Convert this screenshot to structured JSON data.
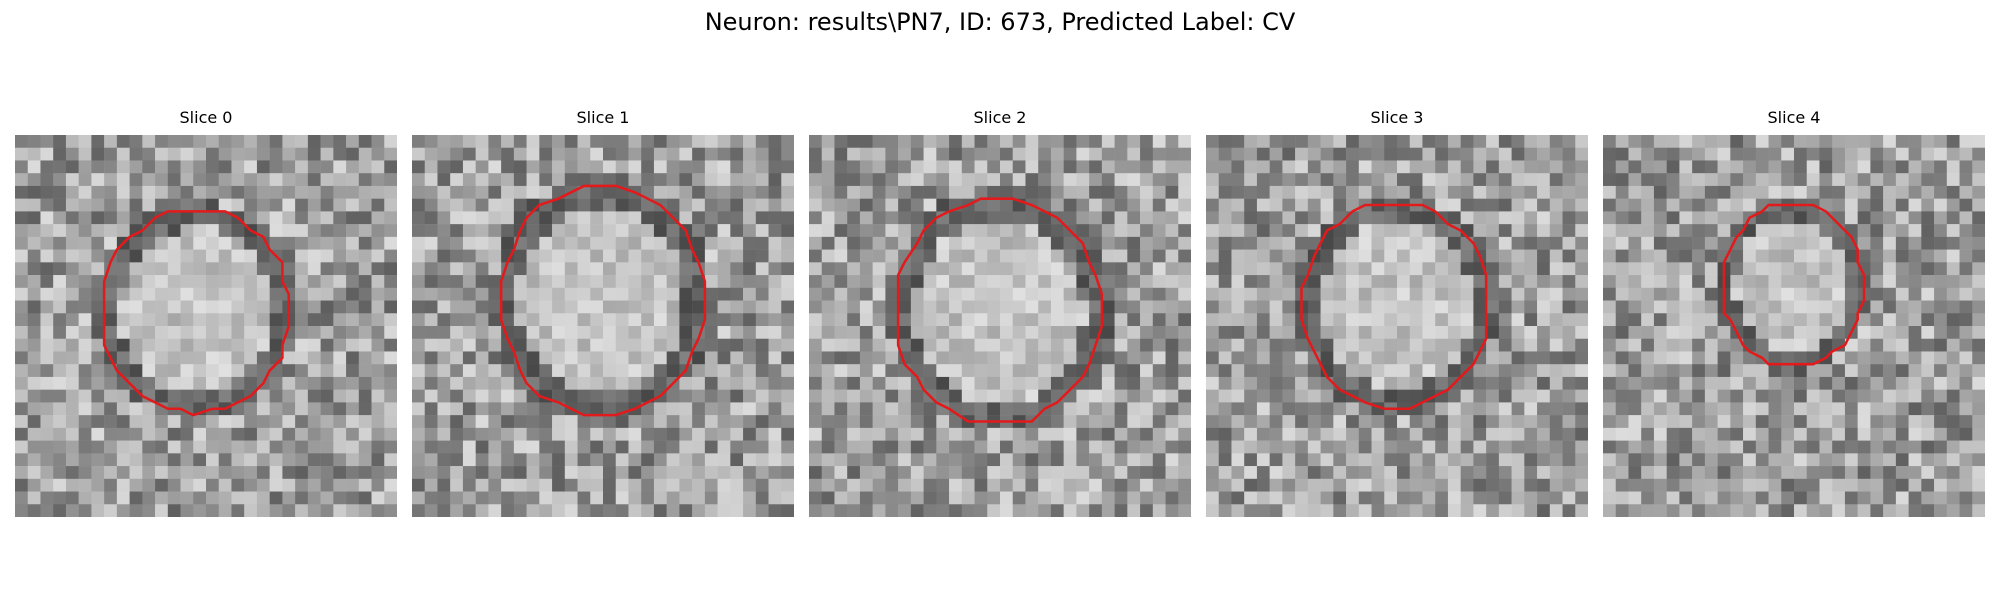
{
  "figure": {
    "title": "Neuron: results\\PN7, ID: 673, Predicted Label: CV",
    "contour_color": "#e31a1c",
    "colormap": "gray",
    "grid_size": 30
  },
  "slices": [
    {
      "label": "Slice 0"
    },
    {
      "label": "Slice 1"
    },
    {
      "label": "Slice 2"
    },
    {
      "label": "Slice 3"
    },
    {
      "label": "Slice 4"
    }
  ]
}
